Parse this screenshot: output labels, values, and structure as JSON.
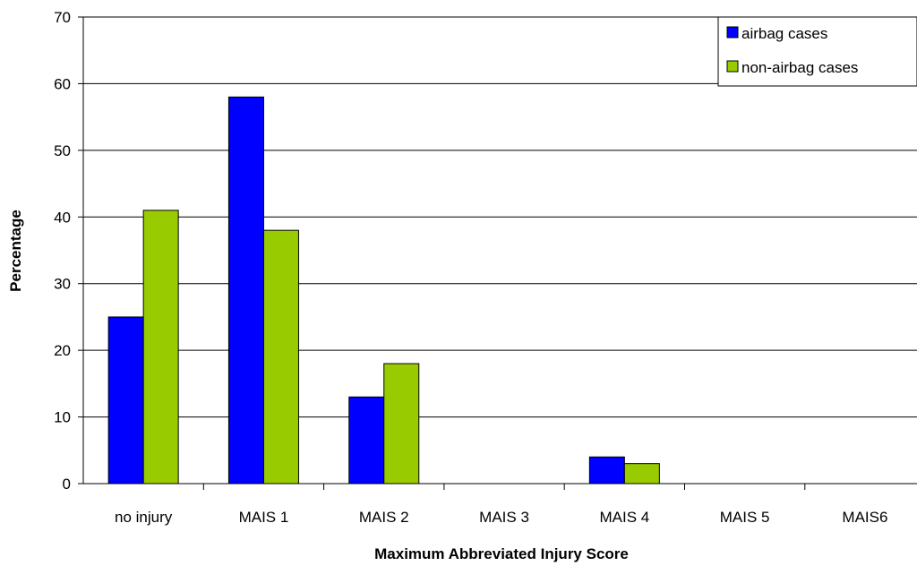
{
  "chart_data": {
    "type": "bar",
    "categories": [
      "no injury",
      "MAIS 1",
      "MAIS 2",
      "MAIS 3",
      "MAIS 4",
      "MAIS 5",
      "MAIS6"
    ],
    "series": [
      {
        "name": "airbag cases",
        "color": "#0000ff",
        "values": [
          25,
          58,
          13,
          0,
          4,
          0,
          0
        ]
      },
      {
        "name": "non-airbag cases",
        "color": "#99cc00",
        "values": [
          41,
          38,
          18,
          0,
          3,
          0,
          0
        ]
      }
    ],
    "title": "",
    "xlabel": "Maximum Abbreviated Injury Score",
    "ylabel": "Percentage",
    "ylim": [
      0,
      70
    ],
    "yticks": [
      0,
      10,
      20,
      30,
      40,
      50,
      60,
      70
    ],
    "grid": true,
    "legend_position": "top-right"
  }
}
